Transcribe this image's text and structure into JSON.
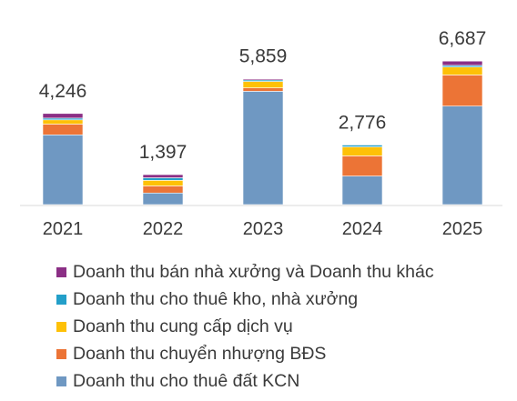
{
  "chart_data": {
    "type": "bar",
    "stacked": true,
    "title": "",
    "xlabel": "",
    "ylabel": "",
    "ylim": [
      0,
      7000
    ],
    "grid": false,
    "legend_position": "bottom",
    "categories": [
      "2021",
      "2022",
      "2023",
      "2024",
      "2025"
    ],
    "totals": [
      "4,246",
      "1,397",
      "5,859",
      "2,776",
      "6,687"
    ],
    "series": [
      {
        "name": "Doanh thu cho thuê đất KCN",
        "color": "#6f98c2",
        "values": [
          3250,
          540,
          5280,
          1330,
          4590
        ]
      },
      {
        "name": "Doanh thu chuyển nhượng BĐS",
        "color": "#ec7436",
        "values": [
          500,
          330,
          160,
          940,
          1450
        ]
      },
      {
        "name": "Doanh thu cung cấp dịch vụ",
        "color": "#fec107",
        "values": [
          200,
          260,
          300,
          420,
          370
        ]
      },
      {
        "name": "Doanh thu cho thuê kho, nhà xưởng",
        "color": "#239fc9",
        "values": [
          80,
          120,
          70,
          86,
          77
        ]
      },
      {
        "name": "Doanh thu bán nhà xưởng và Doanh thu khác",
        "color": "#8b2f85",
        "values": [
          216,
          147,
          49,
          0,
          200
        ]
      }
    ],
    "legend_order": [
      4,
      3,
      2,
      1,
      0
    ]
  }
}
